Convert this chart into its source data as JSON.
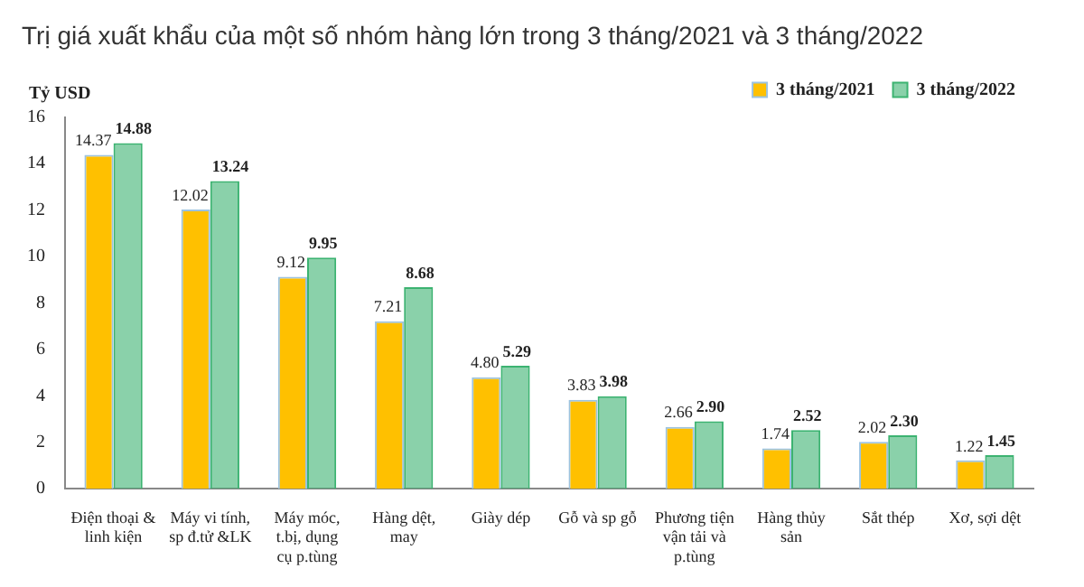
{
  "chart_data": {
    "type": "bar",
    "title": "Trị giá xuất khẩu của một số nhóm hàng lớn trong 3 tháng/2021 và 3 tháng/2022",
    "ylabel": "Tỷ USD",
    "categories": [
      "Điện thoại & linh kiện",
      "Máy vi tính, sp đ.tử &LK",
      "Máy móc, t.bị, dụng cụ p.tùng",
      "Hàng dệt, may",
      "Giày dép",
      "Gỗ và sp gỗ",
      "Phương tiện vận tải và p.tùng",
      "Hàng thủy sản",
      "Sắt thép",
      "Xơ, sợi dệt"
    ],
    "series": [
      {
        "name": "3 tháng/2021",
        "color": "#ffc000",
        "values": [
          14.37,
          12.02,
          9.12,
          7.21,
          4.8,
          3.83,
          2.66,
          1.74,
          2.02,
          1.22
        ],
        "value_labels": [
          "14.37",
          "12.02",
          "9.12",
          "7.21",
          "4.80",
          "3.83",
          "2.66",
          "1.74",
          "2.02",
          "1.22"
        ]
      },
      {
        "name": "3 tháng/2022",
        "color": "#3cb371",
        "values": [
          14.88,
          13.24,
          9.95,
          8.68,
          5.29,
          3.98,
          2.9,
          2.52,
          2.3,
          1.45
        ],
        "value_labels": [
          "14.88",
          "13.24",
          "9.95",
          "8.68",
          "5.29",
          "3.98",
          "2.90",
          "2.52",
          "2.30",
          "1.45"
        ]
      }
    ],
    "ylim": [
      0,
      16
    ],
    "yticks": [
      0,
      2,
      4,
      6,
      8,
      10,
      12,
      14,
      16
    ],
    "grid": false,
    "legend": "top right"
  }
}
